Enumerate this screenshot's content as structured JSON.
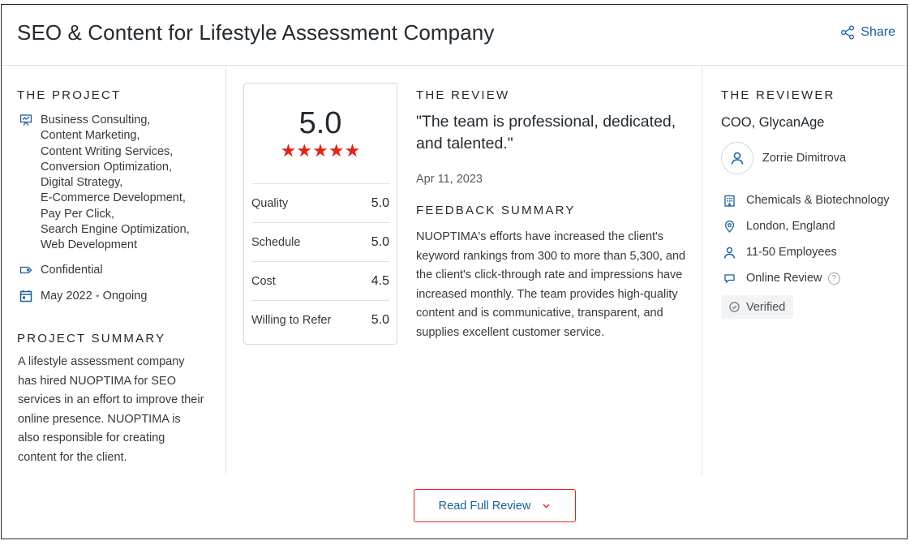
{
  "header": {
    "title": "SEO & Content for Lifestyle Assessment Company",
    "share_label": "Share"
  },
  "project": {
    "section_label": "THE PROJECT",
    "services": [
      "Business Consulting,",
      "Content Marketing,",
      "Content Writing Services,",
      "Conversion Optimization,",
      "Digital Strategy,",
      "E-Commerce Development,",
      "Pay Per Click,",
      "Search Engine Optimization,",
      "Web Development"
    ],
    "budget": "Confidential",
    "dates": "May 2022 - Ongoing",
    "summary_label": "PROJECT SUMMARY",
    "summary": "A lifestyle assessment company has hired NUOPTIMA for SEO services in an effort to improve their online presence. NUOPTIMA is also responsible for creating content for the client."
  },
  "rating": {
    "overall": "5.0",
    "stars": 5,
    "scores": [
      {
        "label": "Quality",
        "value": "5.0"
      },
      {
        "label": "Schedule",
        "value": "5.0"
      },
      {
        "label": "Cost",
        "value": "4.5"
      },
      {
        "label": "Willing to Refer",
        "value": "5.0"
      }
    ]
  },
  "review": {
    "section_label": "THE REVIEW",
    "quote": "\"The team is professional, dedicated, and talented.\"",
    "date": "Apr 11, 2023",
    "feedback_label": "FEEDBACK SUMMARY",
    "feedback": "NUOPTIMA's efforts have increased the client's keyword rankings from 300 to more than 5,300, and the client's click-through rate and impressions have increased monthly. The team provides high-quality content and is communicative, transparent, and supplies excellent customer service."
  },
  "reviewer": {
    "section_label": "THE REVIEWER",
    "role": "COO, GlycanAge",
    "name": "Zorrie Dimitrova",
    "industry": "Chemicals & Biotechnology",
    "location": "London, England",
    "size": "11-50 Employees",
    "review_type": "Online Review",
    "help_glyph": "?",
    "verified": "Verified"
  },
  "footer": {
    "read_full_review": "Read Full Review"
  },
  "colors": {
    "accent_red": "#e62415",
    "link_blue": "#1a5fa0"
  }
}
